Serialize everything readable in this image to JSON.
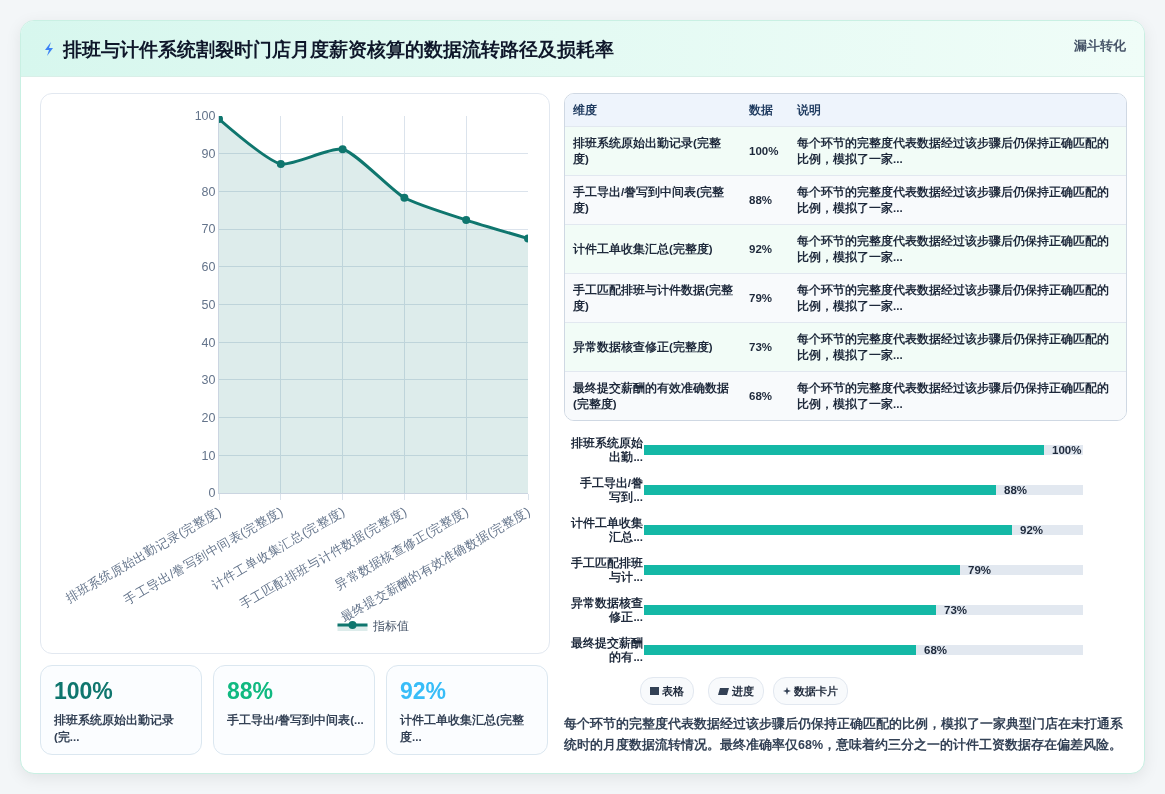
{
  "chart_data": [
    {
      "type": "area",
      "categories": [
        "排班系统原始出勤记录(完整度)",
        "手工导出/誊写到中间表(完整度)",
        "计件工单收集汇总(完整度)",
        "手工匹配排班与计件数据(完整度)",
        "异常数据核查修正(完整度)",
        "最终提交薪酬的有效准确数据(完整度)"
      ],
      "series": [
        {
          "name": "指标值",
          "color": "#0f766e",
          "values": [
            99.2,
            87.3,
            91.2,
            78.3,
            72.4,
            67.5
          ]
        }
      ],
      "ylim": [
        0,
        100
      ],
      "yticks": [
        0,
        10,
        20,
        30,
        40,
        50,
        60,
        70,
        80,
        90,
        100
      ],
      "grid": true,
      "legend": "bottom",
      "marker": "circle"
    },
    {
      "type": "other",
      "categories": [
        "排班系统原始出勤记录(完整度)",
        "手工导出/誊写到中间表(完整度)",
        "计件工单收集汇总(完整度)",
        "手工匹配排班与计件数据(完整度)",
        "异常数据核查修正(完整度)",
        "最终提交薪酬的有效准确数据(完整度)"
      ],
      "value_labels": [
        "100%",
        "88%",
        "92%",
        "79%",
        "73%",
        "68%"
      ],
      "annotations": [
        "维度",
        "数据",
        "说明",
        "每个环节的完整度代表数据经过该步骤后仍保持正确匹配的比例，模拟了一家...",
        "每个环节的完整度代表数据经过该步骤后仍保持正确匹配的比例，模拟了一家...",
        "每个环节的完整度代表数据经过该步骤后仍保持正确匹配的比例，模拟了一家...",
        "每个环节的完整度代表数据经过该步骤后仍保持正确匹配的比例，模拟了一家...",
        "每个环节的完整度代表数据经过该步骤后仍保持正确匹配的比例，模拟了一家...",
        "每个环节的完整度代表数据经过该步骤后仍保持正确匹配的比例，模拟了一家..."
      ]
    },
    {
      "type": "bar",
      "orientation": "horizontal",
      "categories": [
        "排班系统原始出勤...",
        "手工导出/誊写到...",
        "计件工单收集汇总...",
        "手工匹配排班与计...",
        "异常数据核查修正...",
        "最终提交薪酬的有..."
      ],
      "values": [
        100,
        88,
        92,
        79,
        73,
        68
      ],
      "value_labels": [
        "100%",
        "88%",
        "92%",
        "79%",
        "73%",
        "68%"
      ],
      "color": "#14b8a6",
      "tick_labels": "y"
    },
    {
      "type": "other",
      "annotations": [
        "100%",
        "排班系统原始出勤记录(完...",
        "88%",
        "手工导出/誊写到中间表(...",
        "92%",
        "计件工单收集汇总(完整度..."
      ],
      "colors": [
        "#0f766e",
        "#10b981",
        "#38bdf8"
      ]
    },
    {
      "type": "other",
      "annotations": [
        "表格",
        "进度",
        "数据卡片",
        "每个环节的完整度代表数据经过该步骤后仍保持正确匹配的比例，模拟了一家典型门店在未打通系统时的月度数据流转情况。最终准确率仅68%，意味着约三分之一的计件工资数据存在偏差风险。"
      ]
    },
    {
      "type": "other",
      "title": "排班与计件系统割裂时门店月度薪资核算的数据流转路径及损耗率",
      "subtitle": "漏斗转化"
    }
  ]
}
